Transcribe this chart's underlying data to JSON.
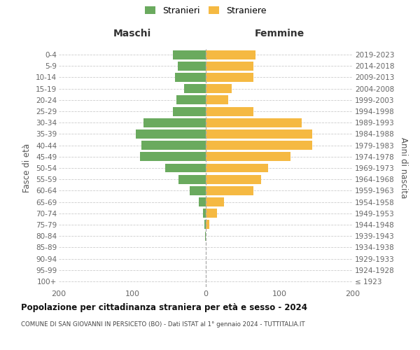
{
  "age_groups": [
    "100+",
    "95-99",
    "90-94",
    "85-89",
    "80-84",
    "75-79",
    "70-74",
    "65-69",
    "60-64",
    "55-59",
    "50-54",
    "45-49",
    "40-44",
    "35-39",
    "30-34",
    "25-29",
    "20-24",
    "15-19",
    "10-14",
    "5-9",
    "0-4"
  ],
  "birth_years": [
    "≤ 1923",
    "1924-1928",
    "1929-1933",
    "1934-1938",
    "1939-1943",
    "1944-1948",
    "1949-1953",
    "1954-1958",
    "1959-1963",
    "1964-1968",
    "1969-1973",
    "1974-1978",
    "1979-1983",
    "1984-1988",
    "1989-1993",
    "1994-1998",
    "1999-2003",
    "2004-2008",
    "2009-2013",
    "2014-2018",
    "2019-2023"
  ],
  "maschi": [
    0,
    0,
    0,
    0,
    1,
    2,
    4,
    10,
    22,
    37,
    55,
    90,
    88,
    95,
    85,
    45,
    40,
    30,
    42,
    38,
    45
  ],
  "femmine": [
    0,
    0,
    0,
    0,
    0,
    5,
    15,
    25,
    65,
    75,
    85,
    115,
    145,
    145,
    130,
    65,
    30,
    35,
    65,
    65,
    68
  ],
  "male_color": "#6aaa5e",
  "female_color": "#f5b942",
  "background_color": "#ffffff",
  "grid_color": "#cccccc",
  "title": "Popolazione per cittadinanza straniera per età e sesso - 2024",
  "subtitle": "COMUNE DI SAN GIOVANNI IN PERSICETO (BO) - Dati ISTAT al 1° gennaio 2024 - TUTTITALIA.IT",
  "header_left": "Maschi",
  "header_right": "Femmine",
  "ylabel_left": "Fasce di età",
  "ylabel_right": "Anni di nascita",
  "legend_male": "Stranieri",
  "legend_female": "Straniere",
  "xlim": 200
}
